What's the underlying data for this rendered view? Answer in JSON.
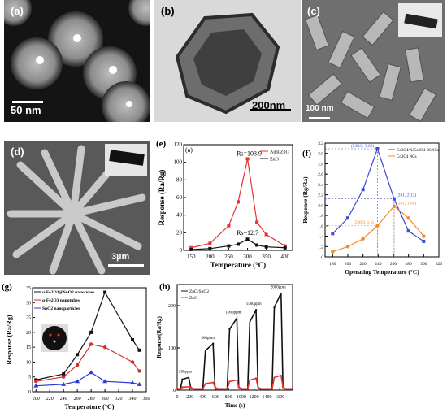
{
  "figure": {
    "panel_a": {
      "label": "(a)",
      "scale": "50 nm"
    },
    "panel_b": {
      "label": "(b)",
      "scale": "200nm"
    },
    "panel_c": {
      "label": "(c)",
      "scale": "100 nm"
    },
    "panel_d": {
      "label": "(d)",
      "scale": "3µm"
    },
    "panel_e": {
      "label": "(e)"
    },
    "panel_f": {
      "label": "(f)"
    },
    "panel_g": {
      "label": "(g)"
    },
    "panel_h": {
      "label": "(h)"
    }
  },
  "chart_data": [
    {
      "id": "e",
      "type": "line",
      "inner_label": "(a)",
      "xlabel": "Temperature (°C)",
      "ylabel": "Response (Ra/Rg)",
      "xlim": [
        130,
        420
      ],
      "ylim": [
        0,
        120
      ],
      "xticks": [
        150,
        200,
        250,
        300,
        350,
        400
      ],
      "yticks": [
        0,
        20,
        40,
        60,
        80,
        100,
        120
      ],
      "legend": [
        "Au@ZnO",
        "ZnO"
      ],
      "annotations": [
        "Rs=103.9",
        "Rs=12.7"
      ],
      "series": [
        {
          "name": "Au@ZnO",
          "color": "#e8322f",
          "x": [
            150,
            200,
            250,
            275,
            300,
            325,
            350,
            400
          ],
          "y": [
            3,
            8,
            28,
            55,
            103.9,
            32,
            18,
            5
          ]
        },
        {
          "name": "ZnO",
          "color": "#111111",
          "x": [
            150,
            200,
            250,
            275,
            300,
            325,
            350,
            400
          ],
          "y": [
            1,
            2,
            5,
            7,
            12.7,
            6,
            4,
            3
          ]
        }
      ]
    },
    {
      "id": "f",
      "type": "line",
      "xlabel": "Operating Temperature (°C)",
      "ylabel": "Response (Rg/Ra)",
      "xlim": [
        170,
        320
      ],
      "ylim": [
        1.0,
        3.2
      ],
      "xticks": [
        180,
        200,
        220,
        240,
        260,
        280,
        300,
        320
      ],
      "yticks": [
        1.0,
        1.2,
        1.4,
        1.6,
        1.8,
        2.0,
        2.2,
        2.4,
        2.6,
        2.8,
        3.0,
        3.2
      ],
      "legend": [
        "Co3O4/NiCo2O4 DSNCs",
        "Co3O4 NCs"
      ],
      "annotations": [
        "(238.9, 3.09)",
        "(261, 2.12)",
        "(238.9, 1.6)",
        "(261, 1.98)"
      ],
      "series": [
        {
          "name": "Co3O4/NiCo2O4 DSNCs",
          "color": "#3b4bd6",
          "x": [
            180,
            200,
            220,
            239,
            261,
            280,
            300
          ],
          "y": [
            1.45,
            1.75,
            2.3,
            3.09,
            2.12,
            1.5,
            1.3
          ]
        },
        {
          "name": "Co3O4 NCs",
          "color": "#f08a2a",
          "x": [
            180,
            200,
            220,
            239,
            261,
            280,
            300
          ],
          "y": [
            1.1,
            1.2,
            1.35,
            1.6,
            1.98,
            1.75,
            1.4
          ]
        }
      ]
    },
    {
      "id": "g",
      "type": "line",
      "xlabel": "Temperature (°C)",
      "ylabel": "Response (Ra/Rg)",
      "xlim": [
        195,
        360
      ],
      "ylim": [
        0,
        35
      ],
      "xticks": [
        200,
        220,
        240,
        260,
        280,
        300,
        320,
        340,
        360
      ],
      "yticks": [
        0,
        5,
        10,
        15,
        20,
        25,
        30,
        35
      ],
      "legend": [
        "α-Fe2O3@SnO2 nanotubes",
        "α-Fe2O3 nanotubes",
        "SnO2 nanoparticles"
      ],
      "series": [
        {
          "name": "α-Fe2O3@SnO2 nanotubes",
          "color": "#111111",
          "x": [
            200,
            240,
            260,
            280,
            300,
            340,
            350
          ],
          "y": [
            4,
            6,
            12.5,
            20,
            33.5,
            17.5,
            14
          ]
        },
        {
          "name": "α-Fe2O3 nanotubes",
          "color": "#d12f2f",
          "x": [
            200,
            240,
            260,
            280,
            300,
            340,
            350
          ],
          "y": [
            3.5,
            5,
            9,
            16,
            15,
            10,
            7
          ]
        },
        {
          "name": "SnO2 nanoparticles",
          "color": "#2b3bd0",
          "x": [
            200,
            240,
            260,
            280,
            300,
            340,
            350
          ],
          "y": [
            2,
            2.5,
            3.5,
            6.5,
            3.5,
            3,
            2.5
          ]
        }
      ]
    },
    {
      "id": "h",
      "type": "line",
      "xlabel": "Time (s)",
      "ylabel": "Response(Ra/Rg)",
      "xlim": [
        0,
        1800
      ],
      "ylim": [
        0,
        250
      ],
      "xticks": [
        0,
        200,
        400,
        600,
        800,
        1000,
        1200,
        1400,
        1600
      ],
      "yticks": [
        0,
        100,
        200
      ],
      "legend": [
        "ZnO/SnO2",
        "ZnO"
      ],
      "annotations": [
        "200ppm",
        "500ppm",
        "1000ppm",
        "1500ppm",
        "2000ppm"
      ],
      "pulses": [
        {
          "start": 50,
          "end": 180,
          "peak": 30,
          "zno": 8
        },
        {
          "start": 400,
          "end": 560,
          "peak": 110,
          "zno": 18
        },
        {
          "start": 780,
          "end": 930,
          "peak": 170,
          "zno": 24
        },
        {
          "start": 1100,
          "end": 1230,
          "peak": 190,
          "zno": 28
        },
        {
          "start": 1480,
          "end": 1620,
          "peak": 230,
          "zno": 35
        }
      ],
      "series": [
        {
          "name": "ZnO/SnO2",
          "color": "#111111"
        },
        {
          "name": "ZnO",
          "color": "#e8322f"
        }
      ]
    }
  ]
}
